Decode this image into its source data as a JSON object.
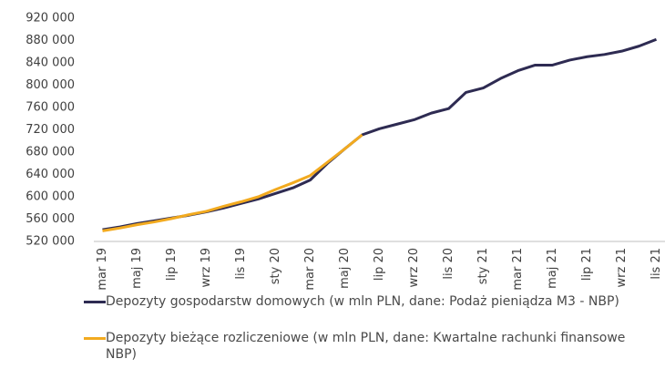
{
  "chart_data": {
    "type": "line",
    "categories": [
      "mar 19",
      null,
      "maj 19",
      null,
      "lip 19",
      null,
      "wrz 19",
      null,
      "lis 19",
      null,
      "sty 20",
      null,
      "mar 20",
      null,
      "maj 20",
      null,
      "lip 20",
      null,
      "wrz 20",
      null,
      "lis 20",
      null,
      "sty 21",
      null,
      "mar 21",
      null,
      "maj 21",
      null,
      "lip 21",
      null,
      "wrz 21",
      null,
      "lis 21"
    ],
    "series": [
      {
        "name": "Depozyty gospodarstw domowych (w mln PLN, dane: Podaż pieniądza M3 - NBP)",
        "color": "#2e2b52",
        "values": [
          541000,
          546000,
          552000,
          557000,
          562000,
          567000,
          573000,
          580000,
          588000,
          596000,
          606000,
          616000,
          630000,
          660000,
          686000,
          711000,
          722000,
          730000,
          738000,
          750000,
          758000,
          787000,
          795000,
          812000,
          826000,
          836000,
          836000,
          845000,
          851000,
          855000,
          861000,
          870000,
          882000
        ]
      },
      {
        "name": "Depozyty bieżące rozliczeniowe (w mln PLN, dane: Kwartalne rachunki finansowe NBP)",
        "color": "#f2aa1f",
        "values": [
          539000,
          544000,
          550000,
          555000,
          561000,
          568000,
          574000,
          583000,
          591000,
          600000,
          613000,
          625000,
          638000,
          662000,
          686000,
          711000,
          null,
          null,
          null,
          null,
          null,
          null,
          null,
          null,
          null,
          null,
          null,
          null,
          null,
          null,
          null,
          null,
          null
        ]
      }
    ],
    "ylim": [
      520000,
      920000
    ],
    "yticks": [
      {
        "value": 520000,
        "label": "520 000"
      },
      {
        "value": 560000,
        "label": "560 000"
      },
      {
        "value": 600000,
        "label": "600 000"
      },
      {
        "value": 640000,
        "label": "640 000"
      },
      {
        "value": 680000,
        "label": "680 000"
      },
      {
        "value": 720000,
        "label": "720 000"
      },
      {
        "value": 760000,
        "label": "760 000"
      },
      {
        "value": 800000,
        "label": "800 000"
      },
      {
        "value": 840000,
        "label": "840 000"
      },
      {
        "value": 880000,
        "label": "880 000"
      },
      {
        "value": 920000,
        "label": "920 000"
      }
    ],
    "grid": false
  }
}
